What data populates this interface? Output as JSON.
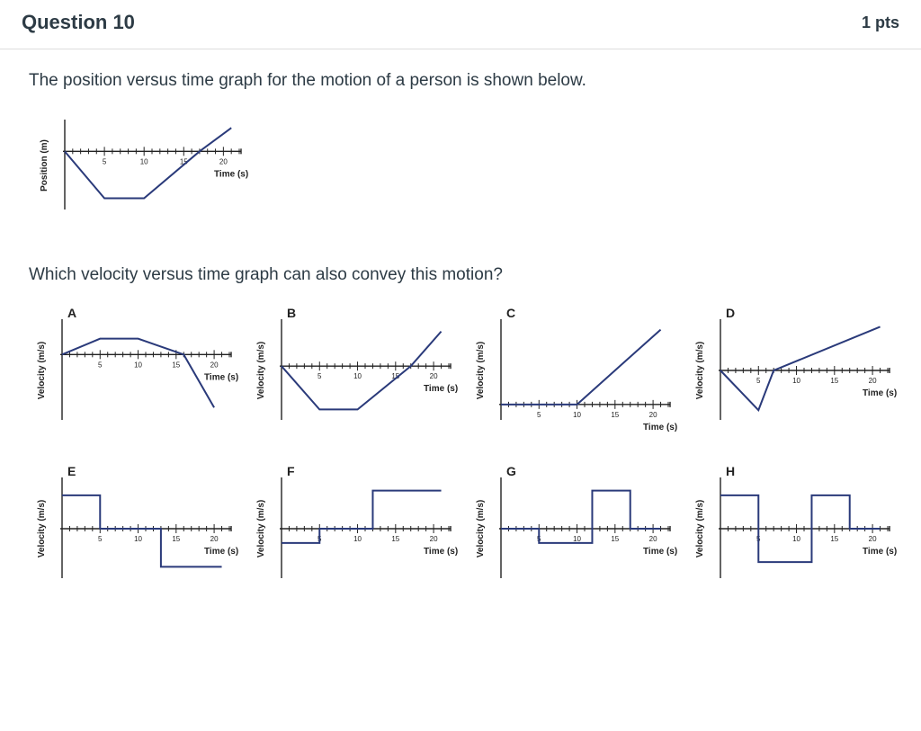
{
  "header": {
    "title": "Question 10",
    "points": "1 pts"
  },
  "prompt": "The position versus time graph for the motion of a person is shown below.",
  "prompt2": "Which velocity versus time graph can also convey this motion?",
  "styles": {
    "axis_color": "#222222",
    "tick_color": "#222222",
    "curve_color": "#2a3a7a",
    "curve_width": 2,
    "tick_fontsize": 8,
    "axis_label_fontsize": 10,
    "letter_fontsize": 14,
    "letter_weight": "bold"
  },
  "main_graph": {
    "ylabel": "Position (m)",
    "xlabel": "Time (s)",
    "xticks": [
      5,
      10,
      15,
      20
    ],
    "xlim": [
      0,
      22
    ],
    "ylim": [
      -1.2,
      0.6
    ],
    "points": [
      [
        0,
        0
      ],
      [
        5,
        -1
      ],
      [
        10,
        -1
      ],
      [
        17,
        0
      ],
      [
        21,
        0.5
      ]
    ]
  },
  "options": [
    {
      "letter": "A",
      "ylabel": "Velocity (m/s)",
      "xlabel": "Time (s)",
      "xticks": [
        5,
        10,
        15,
        20
      ],
      "xlim": [
        0,
        22
      ],
      "ylim": [
        -1.2,
        0.6
      ],
      "points": [
        [
          0,
          0
        ],
        [
          5,
          0.3
        ],
        [
          10,
          0.3
        ],
        [
          16,
          0
        ],
        [
          20,
          -1
        ]
      ]
    },
    {
      "letter": "B",
      "ylabel": "Velocity (m/s)",
      "xlabel": "Time (s)",
      "xticks": [
        5,
        10,
        15,
        20
      ],
      "xlim": [
        0,
        22
      ],
      "ylim": [
        -1.2,
        1.0
      ],
      "points": [
        [
          0,
          0
        ],
        [
          5,
          -1
        ],
        [
          10,
          -1
        ],
        [
          17,
          0
        ],
        [
          21,
          0.8
        ]
      ]
    },
    {
      "letter": "C",
      "ylabel": "Velocity (m/s)",
      "xlabel": "Time (s)",
      "xticks": [
        5,
        10,
        15,
        20
      ],
      "xlim": [
        0,
        22
      ],
      "ylim": [
        -0.2,
        1.2
      ],
      "points": [
        [
          0,
          0
        ],
        [
          10,
          0
        ],
        [
          16,
          0.6
        ],
        [
          21,
          1.1
        ]
      ]
    },
    {
      "letter": "D",
      "ylabel": "Velocity (m/s)",
      "xlabel": "Time (s)",
      "xticks": [
        5,
        10,
        15,
        20
      ],
      "xlim": [
        0,
        22
      ],
      "ylim": [
        -1.2,
        1.2
      ],
      "points": [
        [
          0,
          0
        ],
        [
          5,
          -1
        ],
        [
          7,
          0
        ],
        [
          21,
          1.1
        ]
      ]
    },
    {
      "letter": "E",
      "ylabel": "Velocity (m/s)",
      "xlabel": "Time (s)",
      "xticks": [
        5,
        10,
        15,
        20
      ],
      "xlim": [
        0,
        22
      ],
      "ylim": [
        -1.0,
        1.0
      ],
      "points": [
        [
          0,
          0.7
        ],
        [
          5,
          0.7
        ],
        [
          5,
          0
        ],
        [
          13,
          0
        ],
        [
          13,
          -0.8
        ],
        [
          21,
          -0.8
        ]
      ]
    },
    {
      "letter": "F",
      "ylabel": "Velocity (m/s)",
      "xlabel": "Time (s)",
      "xticks": [
        5,
        10,
        15,
        20
      ],
      "xlim": [
        0,
        22
      ],
      "ylim": [
        -1.0,
        1.0
      ],
      "points": [
        [
          0,
          -0.3
        ],
        [
          5,
          -0.3
        ],
        [
          5,
          0
        ],
        [
          12,
          0
        ],
        [
          12,
          0.8
        ],
        [
          21,
          0.8
        ]
      ]
    },
    {
      "letter": "G",
      "ylabel": "Velocity (m/s)",
      "xlabel": "Time (s)",
      "xticks": [
        5,
        10,
        15,
        20
      ],
      "xlim": [
        0,
        22
      ],
      "ylim": [
        -1.0,
        1.0
      ],
      "points": [
        [
          0,
          0
        ],
        [
          5,
          0
        ],
        [
          5,
          -0.3
        ],
        [
          12,
          -0.3
        ],
        [
          12,
          0.8
        ],
        [
          17,
          0.8
        ],
        [
          17,
          0
        ],
        [
          21,
          0
        ]
      ]
    },
    {
      "letter": "H",
      "ylabel": "Velocity (m/s)",
      "xlabel": "Time (s)",
      "xticks": [
        5,
        10,
        15,
        20
      ],
      "xlim": [
        0,
        22
      ],
      "ylim": [
        -1.0,
        1.0
      ],
      "points": [
        [
          0,
          0.7
        ],
        [
          5,
          0.7
        ],
        [
          5,
          -0.7
        ],
        [
          12,
          -0.7
        ],
        [
          12,
          0.7
        ],
        [
          17,
          0.7
        ],
        [
          17,
          0
        ],
        [
          21,
          0
        ]
      ]
    }
  ]
}
